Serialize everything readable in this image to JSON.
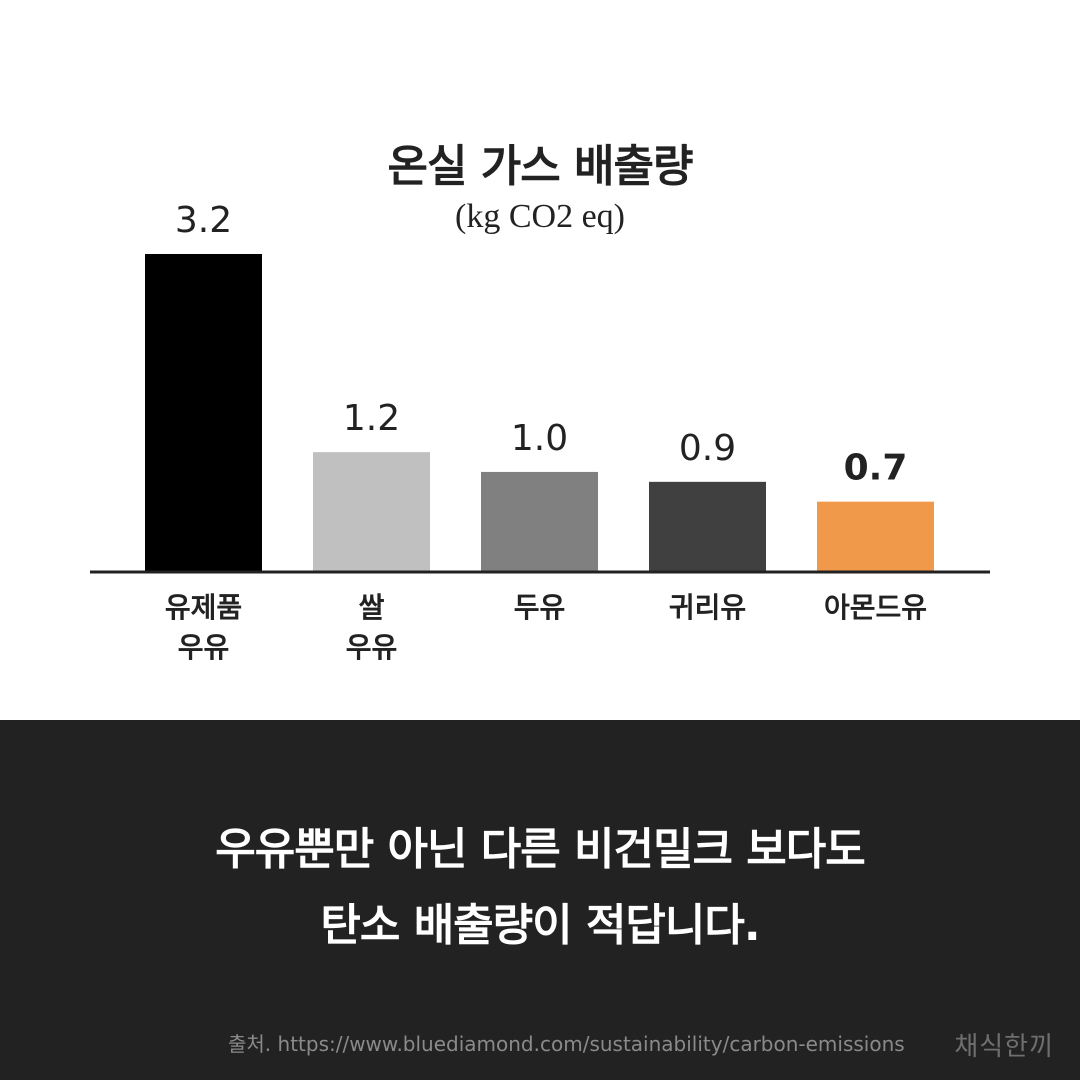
{
  "chart_data": {
    "type": "bar",
    "title": "온실 가스 배출량",
    "subtitle": "(kg CO2 eq)",
    "categories": [
      [
        "유제품",
        "우유"
      ],
      [
        "쌀",
        "우유"
      ],
      [
        "두유"
      ],
      [
        "귀리유"
      ],
      [
        "아몬드유"
      ]
    ],
    "values": [
      3.2,
      1.2,
      1.0,
      0.9,
      0.7
    ],
    "value_labels": [
      "3.2",
      "1.2",
      "1.0",
      "0.9",
      "0.7"
    ],
    "bar_colors": [
      "#000000",
      "#c0c0c0",
      "#808080",
      "#404040",
      "#f0994a"
    ],
    "highlight_index": 4,
    "ylim": [
      0,
      3.2
    ],
    "grid": false,
    "legend": "none"
  },
  "headline": {
    "line1": "우유뿐만 아닌 다른 비건밀크 보다도",
    "line2": "탄소 배출량이 적답니다."
  },
  "footer": {
    "source": "출처. https://www.bluediamond.com/sustainability/carbon-emissions",
    "brand": "채식한끼"
  },
  "colors": {
    "background": "#ffffff",
    "panel": "#222222",
    "text": "#222222",
    "accent": "#f0994a"
  }
}
